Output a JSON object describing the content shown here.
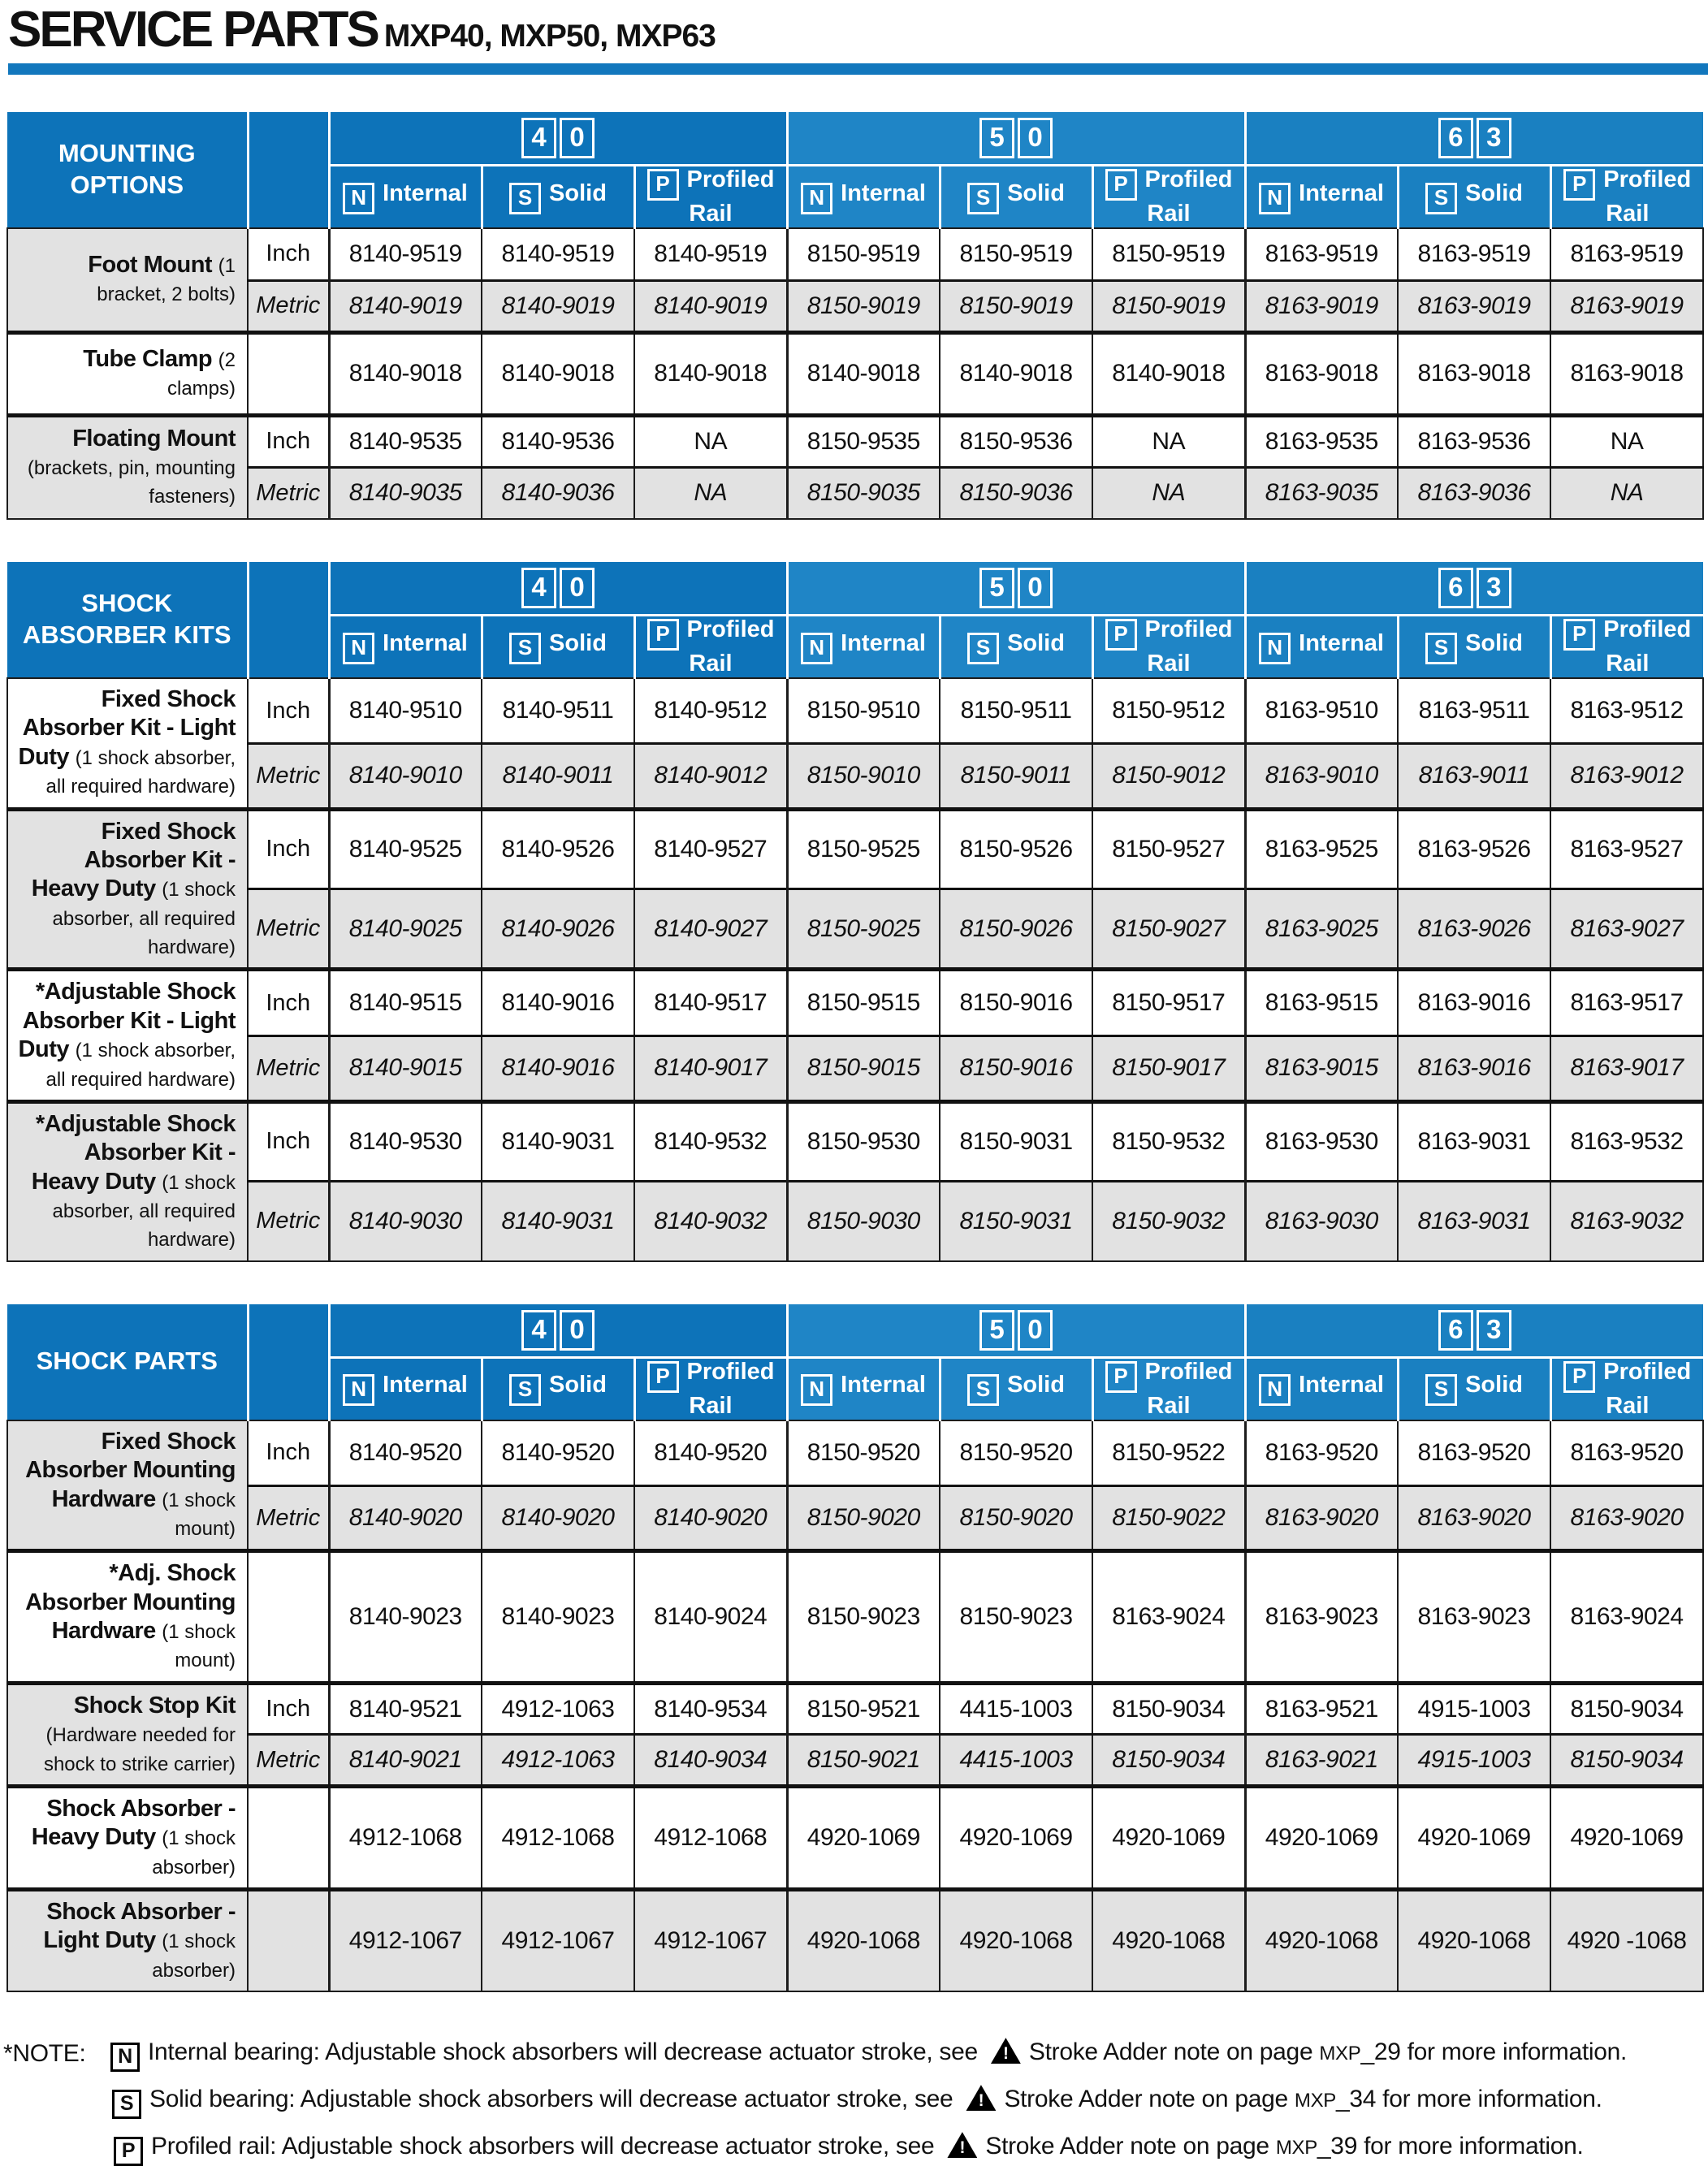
{
  "title": "SERVICE PARTS",
  "subtitle": "MXP40, MXP50, MXP63",
  "accent_color": "#1277bd",
  "sizes": [
    [
      "4",
      "0"
    ],
    [
      "5",
      "0"
    ],
    [
      "6",
      "3"
    ]
  ],
  "bearing_types": [
    {
      "tag": "N",
      "label": "Internal"
    },
    {
      "tag": "S",
      "label": "Solid"
    },
    {
      "tag": "P",
      "label": "Profiled Rail"
    }
  ],
  "tables": [
    {
      "name": "MOUNTING OPTIONS",
      "rows": [
        {
          "label": "Foot Mount",
          "sublabel": "(1 bracket, 2 bolts)",
          "shaded_label": true,
          "variants": [
            {
              "unit": "Inch",
              "italic": false,
              "shaded": false,
              "values": [
                "8140-9519",
                "8140-9519",
                "8140-9519",
                "8150-9519",
                "8150-9519",
                "8150-9519",
                "8163-9519",
                "8163-9519",
                "8163-9519"
              ]
            },
            {
              "unit": "Metric",
              "italic": true,
              "shaded": true,
              "values": [
                "8140-9019",
                "8140-9019",
                "8140-9019",
                "8150-9019",
                "8150-9019",
                "8150-9019",
                "8163-9019",
                "8163-9019",
                "8163-9019"
              ]
            }
          ]
        },
        {
          "label": "Tube Clamp",
          "sublabel": "(2 clamps)",
          "shaded_label": false,
          "variants": [
            {
              "unit": "",
              "italic": false,
              "shaded": false,
              "values": [
                "8140-9018",
                "8140-9018",
                "8140-9018",
                "8140-9018",
                "8140-9018",
                "8140-9018",
                "8163-9018",
                "8163-9018",
                "8163-9018"
              ]
            }
          ]
        },
        {
          "label": "Floating Mount",
          "sublabel": "(brackets, pin, mounting fasteners)",
          "shaded_label": true,
          "variants": [
            {
              "unit": "Inch",
              "italic": false,
              "shaded": false,
              "values": [
                "8140-9535",
                "8140-9536",
                "NA",
                "8150-9535",
                "8150-9536",
                "NA",
                "8163-9535",
                "8163-9536",
                "NA"
              ]
            },
            {
              "unit": "Metric",
              "italic": true,
              "shaded": true,
              "values": [
                "8140-9035",
                "8140-9036",
                "NA",
                "8150-9035",
                "8150-9036",
                "NA",
                "8163-9035",
                "8163-9036",
                "NA"
              ]
            }
          ]
        }
      ]
    },
    {
      "name": "SHOCK\nABSORBER KITS",
      "rows": [
        {
          "label": "Fixed Shock Absorber Kit - Light Duty",
          "sublabel": "(1 shock absorber, all required hardware)",
          "shaded_label": false,
          "variants": [
            {
              "unit": "Inch",
              "italic": false,
              "shaded": false,
              "values": [
                "8140-9510",
                "8140-9511",
                "8140-9512",
                "8150-9510",
                "8150-9511",
                "8150-9512",
                "8163-9510",
                "8163-9511",
                "8163-9512"
              ]
            },
            {
              "unit": "Metric",
              "italic": true,
              "shaded": true,
              "values": [
                "8140-9010",
                "8140-9011",
                "8140-9012",
                "8150-9010",
                "8150-9011",
                "8150-9012",
                "8163-9010",
                "8163-9011",
                "8163-9012"
              ]
            }
          ]
        },
        {
          "label": "Fixed Shock Absorber Kit - Heavy Duty",
          "sublabel": "(1 shock absorber, all required hardware)",
          "shaded_label": true,
          "variants": [
            {
              "unit": "Inch",
              "italic": false,
              "shaded": false,
              "values": [
                "8140-9525",
                "8140-9526",
                "8140-9527",
                "8150-9525",
                "8150-9526",
                "8150-9527",
                "8163-9525",
                "8163-9526",
                "8163-9527"
              ]
            },
            {
              "unit": "Metric",
              "italic": true,
              "shaded": true,
              "values": [
                "8140-9025",
                "8140-9026",
                "8140-9027",
                "8150-9025",
                "8150-9026",
                "8150-9027",
                "8163-9025",
                "8163-9026",
                "8163-9027"
              ]
            }
          ]
        },
        {
          "label": "*Adjustable Shock Absorber Kit - Light Duty",
          "sublabel": "(1 shock absorber, all required hardware)",
          "shaded_label": false,
          "variants": [
            {
              "unit": "Inch",
              "italic": false,
              "shaded": false,
              "values": [
                "8140-9515",
                "8140-9016",
                "8140-9517",
                "8150-9515",
                "8150-9016",
                "8150-9517",
                "8163-9515",
                "8163-9016",
                "8163-9517"
              ]
            },
            {
              "unit": "Metric",
              "italic": true,
              "shaded": true,
              "values": [
                "8140-9015",
                "8140-9016",
                "8140-9017",
                "8150-9015",
                "8150-9016",
                "8150-9017",
                "8163-9015",
                "8163-9016",
                "8163-9017"
              ]
            }
          ]
        },
        {
          "label": "*Adjustable Shock Absorber Kit - Heavy Duty",
          "sublabel": "(1 shock absorber, all required hardware)",
          "shaded_label": true,
          "variants": [
            {
              "unit": "Inch",
              "italic": false,
              "shaded": false,
              "values": [
                "8140-9530",
                "8140-9031",
                "8140-9532",
                "8150-9530",
                "8150-9031",
                "8150-9532",
                "8163-9530",
                "8163-9031",
                "8163-9532"
              ]
            },
            {
              "unit": "Metric",
              "italic": true,
              "shaded": true,
              "values": [
                "8140-9030",
                "8140-9031",
                "8140-9032",
                "8150-9030",
                "8150-9031",
                "8150-9032",
                "8163-9030",
                "8163-9031",
                "8163-9032"
              ]
            }
          ]
        }
      ]
    },
    {
      "name": "SHOCK PARTS",
      "rows": [
        {
          "label": "Fixed Shock Absorber Mounting Hardware",
          "sublabel": "(1 shock mount)",
          "shaded_label": true,
          "variants": [
            {
              "unit": "Inch",
              "italic": false,
              "shaded": false,
              "values": [
                "8140-9520",
                "8140-9520",
                "8140-9520",
                "8150-9520",
                "8150-9520",
                "8150-9522",
                "8163-9520",
                "8163-9520",
                "8163-9520"
              ]
            },
            {
              "unit": "Metric",
              "italic": true,
              "shaded": true,
              "values": [
                "8140-9020",
                "8140-9020",
                "8140-9020",
                "8150-9020",
                "8150-9020",
                "8150-9022",
                "8163-9020",
                "8163-9020",
                "8163-9020"
              ]
            }
          ]
        },
        {
          "label": "*Adj. Shock Absorber Mounting Hardware",
          "sublabel": "(1 shock mount)",
          "shaded_label": false,
          "variants": [
            {
              "unit": "",
              "italic": false,
              "shaded": false,
              "values": [
                "8140-9023",
                "8140-9023",
                "8140-9024",
                "8150-9023",
                "8150-9023",
                "8163-9024",
                "8163-9023",
                "8163-9023",
                "8163-9024"
              ]
            }
          ]
        },
        {
          "label": "Shock Stop Kit",
          "sublabel": "(Hardware needed for shock to strike carrier)",
          "shaded_label": true,
          "variants": [
            {
              "unit": "Inch",
              "italic": false,
              "shaded": false,
              "values": [
                "8140-9521",
                "4912-1063",
                "8140-9534",
                "8150-9521",
                "4415-1003",
                "8150-9034",
                "8163-9521",
                "4915-1003",
                "8150-9034"
              ]
            },
            {
              "unit": "Metric",
              "italic": true,
              "shaded": true,
              "values": [
                "8140-9021",
                "4912-1063",
                "8140-9034",
                "8150-9021",
                "4415-1003",
                "8150-9034",
                "8163-9021",
                "4915-1003",
                "8150-9034"
              ]
            }
          ]
        },
        {
          "label": "Shock Absorber - Heavy Duty",
          "sublabel": "(1 shock absorber)",
          "shaded_label": false,
          "variants": [
            {
              "unit": "",
              "italic": false,
              "shaded": false,
              "values": [
                "4912-1068",
                "4912-1068",
                "4912-1068",
                "4920-1069",
                "4920-1069",
                "4920-1069",
                "4920-1069",
                "4920-1069",
                "4920-1069"
              ]
            }
          ]
        },
        {
          "label": "Shock Absorber - Light Duty",
          "sublabel": "(1 shock absorber)",
          "shaded_label": true,
          "variants": [
            {
              "unit": "",
              "italic": false,
              "shaded": true,
              "values": [
                "4912-1067",
                "4912-1067",
                "4912-1067",
                "4920-1068",
                "4920-1068",
                "4920-1068",
                "4920-1068",
                "4920-1068",
                "4920 -1068"
              ]
            }
          ]
        }
      ]
    }
  ],
  "notes": {
    "prefix": "*NOTE:",
    "items": [
      {
        "tag": "N",
        "before": "Internal bearing: Adjustable shock absorbers will decrease actuator stroke, see",
        "after": "Stroke Adder note on page",
        "page_label": "MXP",
        "page_suffix": "_29",
        "tail": "for more information."
      },
      {
        "tag": "S",
        "before": "Solid bearing: Adjustable shock absorbers will decrease actuator stroke, see",
        "after": "Stroke Adder note on page",
        "page_label": "MXP",
        "page_suffix": "_34",
        "tail": "for more information."
      },
      {
        "tag": "P",
        "before": "Profiled rail: Adjustable shock absorbers will decrease actuator stroke, see",
        "after": "Stroke Adder note on page",
        "page_label": "MXP",
        "page_suffix": "_39",
        "tail": "for more information."
      }
    ]
  }
}
